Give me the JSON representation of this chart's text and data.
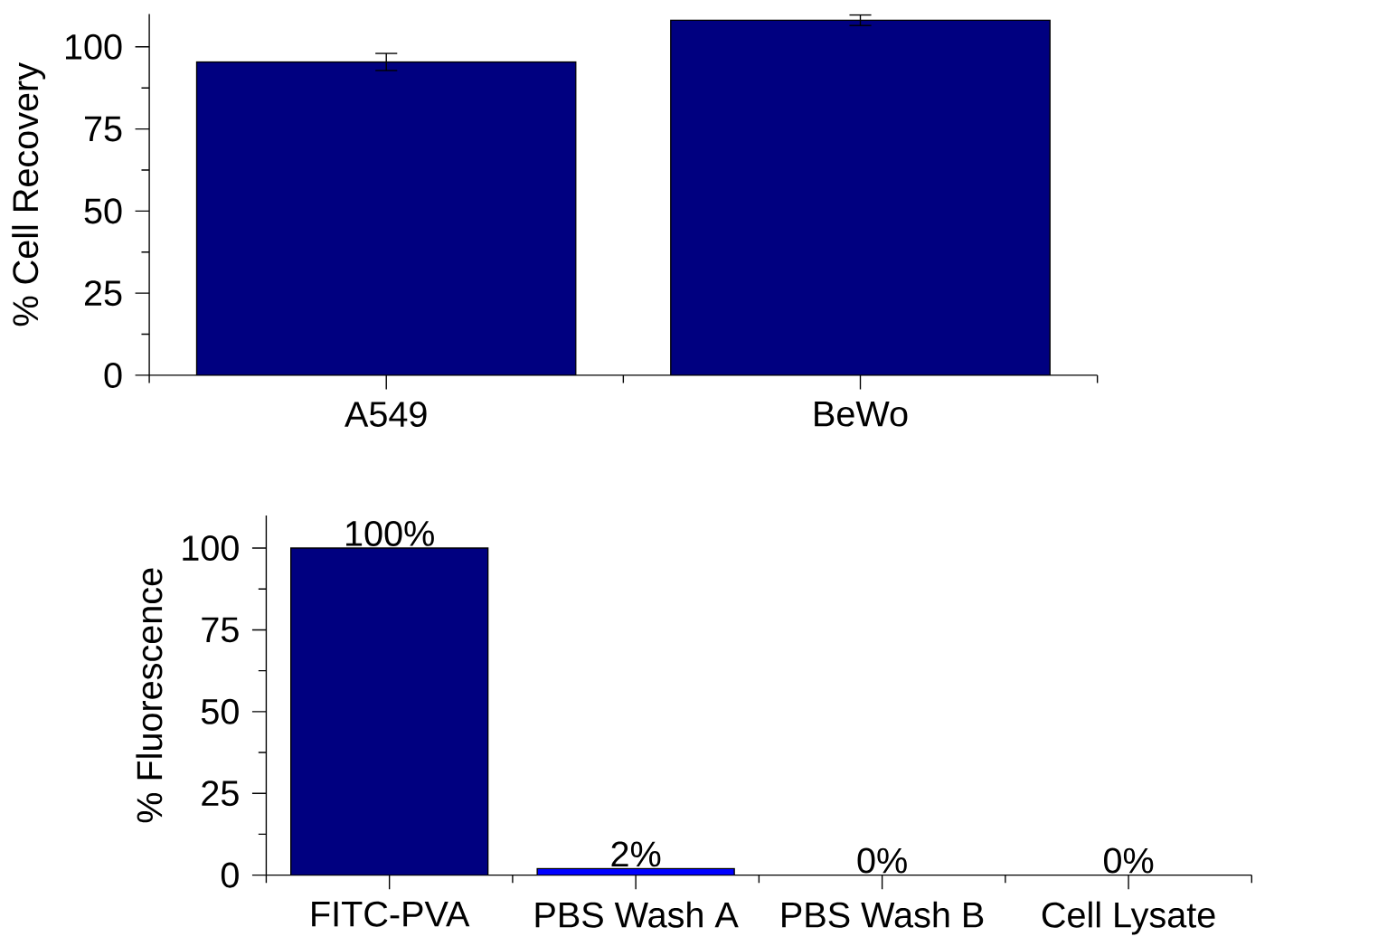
{
  "chart_data": [
    {
      "type": "bar",
      "ylabel": "% Cell Recovery",
      "categories": [
        "A549",
        "BeWo"
      ],
      "values": [
        95.4,
        108.1
      ],
      "errors": [
        2.6,
        1.6
      ],
      "color": "#000080",
      "ylim": [
        0,
        110
      ],
      "yticks": [
        0,
        {
          "value": 12.5,
          "label": null
        },
        25,
        {
          "value": 37.5,
          "label": null
        },
        50,
        {
          "value": 62.5,
          "label": null
        },
        75,
        {
          "value": 87.5,
          "label": null
        },
        100
      ]
    },
    {
      "type": "bar",
      "ylabel": "% Fluorescence",
      "categories": [
        "FITC-PVA",
        "PBS Wash A",
        "PBS Wash B",
        "Cell Lysate"
      ],
      "values": [
        100,
        2,
        0,
        0
      ],
      "value_labels": [
        "100%",
        "2%",
        "0%",
        "0%"
      ],
      "colors": [
        "#000080",
        "#0000ff",
        "#000080",
        "#000080"
      ],
      "ylim": [
        0,
        110
      ],
      "yticks": [
        0,
        {
          "value": 12.5,
          "label": null
        },
        25,
        {
          "value": 37.5,
          "label": null
        },
        50,
        {
          "value": 62.5,
          "label": null
        },
        75,
        {
          "value": 87.5,
          "label": null
        },
        100
      ]
    }
  ]
}
